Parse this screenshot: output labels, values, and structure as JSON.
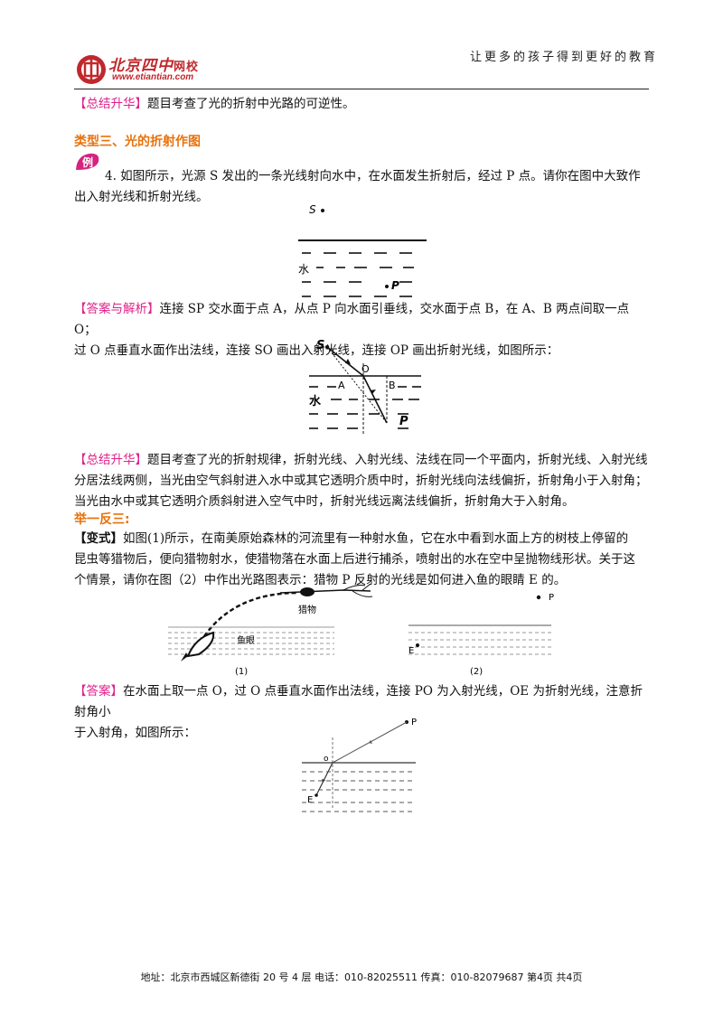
{
  "header": {
    "logo_name": "北京四中",
    "logo_sub": "网校",
    "logo_url": "www.etiantian.com",
    "slogan": "让更多的孩子得到更好的教育"
  },
  "p1": {
    "tag": "【总结升华】",
    "text": "题目考查了光的折射中光路的可逆性。"
  },
  "section_title": "类型三、光的折射作图",
  "example": {
    "badge": "例",
    "line1": "4.  如图所示，光源 S 发出的一条光线射向水中，在水面发生折射后，经过 P 点。请你在图中大致作",
    "line2": "出入射光线和折射光线。"
  },
  "fig1": {
    "s": "S",
    "water": "水",
    "p": "P"
  },
  "answer1": {
    "tag": "【答案与解析】",
    "line1": "连接 SP 交水面于点 A，从点 P 向水面引垂线，交水面于点 B，在 A、B 两点间取一点 O；",
    "line2": "过 O 点垂直水面作出法线，连接 SO 画出入射光线，连接 OP 画出折射光线，如图所示："
  },
  "fig2": {
    "s": "S",
    "o": "O",
    "a": "A",
    "b": "B",
    "water": "水",
    "p": "P"
  },
  "summary2": {
    "tag": "【总结升华】",
    "line1": "题目考查了光的折射规律，折射光线、入射光线、法线在同一个平面内，折射光线、入射光线",
    "line2": "分居法线两侧，当光由空气斜射进入水中或其它透明介质中时，折射光线向法线偏折，折射角小于入射角；",
    "line3": "当光由水中或其它透明介质斜射进入空气中时，折射光线远离法线偏折，折射角大于入射角。"
  },
  "analog_title": "举一反三:",
  "variant": {
    "tag": "【变式】",
    "line1": "如图(1)所示，在南美原始森林的河流里有一种射水鱼，它在水中看到水面上方的树枝上停留的",
    "line2": "昆虫等猎物后，便向猎物射水，使猎物落在水面上后进行捕杀，喷射出的水在空中呈抛物线形状。关于这",
    "line3": "个情景，请你在图（2）中作出光路图表示：猎物 P 反射的光线是如何进入鱼的眼睛 E 的。"
  },
  "fig3": {
    "prey": "猎物",
    "fisheye": "鱼眼",
    "cap1": "(1)",
    "p": "P",
    "e": "E",
    "cap2": "(2)"
  },
  "answer2": {
    "tag": "【答案】",
    "line1": "在水面上取一点 O，过 O 点垂直水面作出法线，连接 PO 为入射光线，OE 为折射光线，注意折射角小",
    "line2": "于入射角，如图所示："
  },
  "fig4": {
    "p": "P",
    "o": "o",
    "e": "E"
  },
  "footer": "地址：北京市西城区新德街 20 号 4 层  电话：010-82025511  传真：010-82079687   第4页  共4页",
  "colors": {
    "tag": "#e0218a",
    "heading": "#e8720c",
    "logo": "#c0282d"
  }
}
